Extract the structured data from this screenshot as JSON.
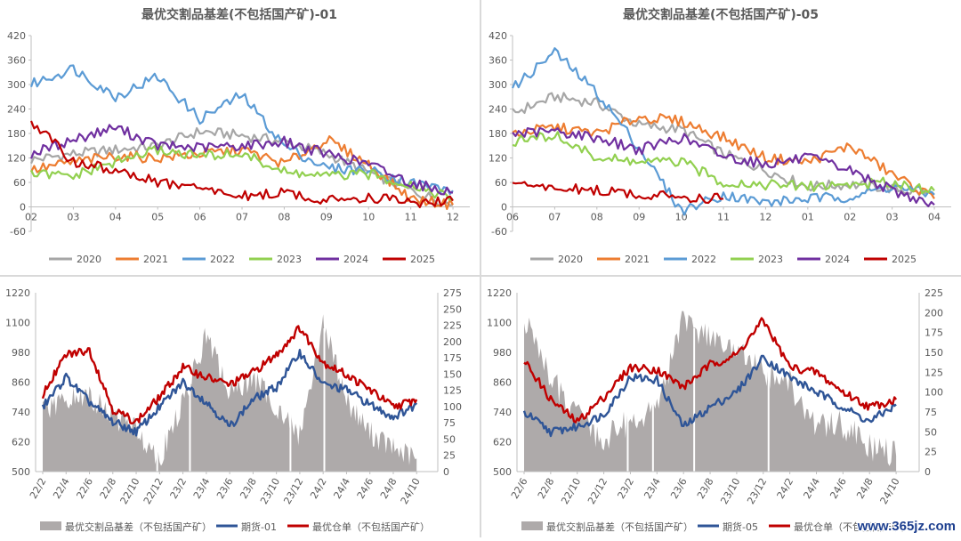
{
  "watermark": "www.365jz.com",
  "panels": [
    {
      "title": "最优交割品基差(不包括国产矿)-01",
      "legend": [
        "2020",
        "2021",
        "2022",
        "2023",
        "2024",
        "2025"
      ],
      "colors": [
        "#a6a6a6",
        "#ed7d31",
        "#5b9bd5",
        "#92d050",
        "#7030a0",
        "#c00000"
      ],
      "y_ticks": [
        "420",
        "360",
        "300",
        "240",
        "180",
        "120",
        "60",
        "0",
        "-60"
      ],
      "x_ticks": [
        "02",
        "03",
        "04",
        "05",
        "06",
        "07",
        "08",
        "09",
        "10",
        "11",
        "12"
      ]
    },
    {
      "title": "最优交割品基差(不包括国产矿)-05",
      "legend": [
        "2020",
        "2021",
        "2022",
        "2023",
        "2024",
        "2025"
      ],
      "colors": [
        "#a6a6a6",
        "#ed7d31",
        "#5b9bd5",
        "#92d050",
        "#7030a0",
        "#c00000"
      ],
      "y_ticks": [
        "420",
        "360",
        "300",
        "240",
        "180",
        "120",
        "60",
        "0",
        "-60"
      ],
      "x_ticks": [
        "06",
        "07",
        "08",
        "09",
        "10",
        "11",
        "12",
        "01",
        "02",
        "03",
        "04"
      ]
    },
    {
      "legend": [
        "最优交割品基差（不包括国产矿）",
        "期货-01",
        "最优仓单（不包括国产矿）"
      ],
      "colors": [
        "#aeaaaa",
        "#2f5597",
        "#c00000"
      ],
      "y_left_ticks": [
        "1220",
        "1100",
        "980",
        "860",
        "740",
        "620",
        "500"
      ],
      "y_right_ticks": [
        "275",
        "250",
        "225",
        "200",
        "175",
        "150",
        "125",
        "100",
        "75",
        "50",
        "25",
        "0"
      ],
      "x_ticks": [
        "22/2",
        "22/4",
        "22/6",
        "22/8",
        "22/10",
        "22/12",
        "23/2",
        "23/4",
        "23/6",
        "23/8",
        "23/10",
        "23/12",
        "24/2",
        "24/4",
        "24/6",
        "24/8",
        "24/10"
      ]
    },
    {
      "legend": [
        "最优交割品基差（不包括国产矿）",
        "期货-05",
        "最优仓单（不包括国产矿）"
      ],
      "colors": [
        "#aeaaaa",
        "#2f5597",
        "#c00000"
      ],
      "y_left_ticks": [
        "1220",
        "1100",
        "980",
        "860",
        "740",
        "620",
        "500"
      ],
      "y_right_ticks": [
        "225",
        "200",
        "175",
        "150",
        "125",
        "100",
        "75",
        "50",
        "25",
        "0"
      ],
      "x_ticks": [
        "22/6",
        "22/8",
        "22/10",
        "22/12",
        "23/2",
        "23/4",
        "23/6",
        "23/8",
        "23/10",
        "23/12",
        "24/2",
        "24/4",
        "24/6",
        "24/8",
        "24/10"
      ]
    }
  ],
  "chart_data": [
    {
      "type": "line",
      "title": "最优交割品基差(不包括国产矿)-01",
      "x": [
        "02",
        "03",
        "04",
        "05",
        "06",
        "07",
        "08",
        "09",
        "10",
        "11",
        "12"
      ],
      "ylim": [
        -60,
        420
      ],
      "grid": false,
      "legend_position": "bottom",
      "series": [
        {
          "name": "2020",
          "values": [
            115,
            130,
            140,
            150,
            185,
            175,
            160,
            130,
            85,
            40,
            5
          ]
        },
        {
          "name": "2021",
          "values": [
            90,
            110,
            125,
            120,
            130,
            140,
            105,
            165,
            105,
            20,
            5
          ]
        },
        {
          "name": "2022",
          "values": [
            300,
            340,
            270,
            320,
            215,
            275,
            150,
            95,
            90,
            60,
            40
          ]
        },
        {
          "name": "2023",
          "values": [
            80,
            75,
            110,
            140,
            125,
            130,
            85,
            75,
            80,
            55,
            20
          ]
        },
        {
          "name": "2024",
          "values": [
            130,
            165,
            195,
            150,
            145,
            150,
            160,
            130,
            105,
            60,
            35
          ]
        },
        {
          "name": "2025",
          "values": [
            210,
            110,
            90,
            60,
            45,
            25,
            35,
            15,
            25,
            10,
            15
          ]
        }
      ]
    },
    {
      "type": "line",
      "title": "最优交割品基差(不包括国产矿)-05",
      "x": [
        "06",
        "07",
        "08",
        "09",
        "10",
        "11",
        "12",
        "01",
        "02",
        "03",
        "04"
      ],
      "ylim": [
        -60,
        420
      ],
      "grid": false,
      "legend_position": "bottom",
      "series": [
        {
          "name": "2020",
          "values": [
            230,
            270,
            255,
            200,
            190,
            130,
            90,
            50,
            55,
            45,
            30
          ]
        },
        {
          "name": "2021",
          "values": [
            180,
            195,
            180,
            220,
            210,
            170,
            120,
            110,
            150,
            80,
            20
          ]
        },
        {
          "name": "2022",
          "values": [
            290,
            380,
            280,
            145,
            -10,
            30,
            10,
            20,
            25,
            50,
            30
          ]
        },
        {
          "name": "2023",
          "values": [
            160,
            175,
            120,
            110,
            110,
            60,
            55,
            50,
            55,
            60,
            40
          ]
        },
        {
          "name": "2024",
          "values": [
            180,
            185,
            170,
            140,
            170,
            125,
            105,
            120,
            90,
            40,
            5
          ]
        },
        {
          "name": "2025",
          "values": [
            55,
            45,
            40,
            30,
            25,
            20,
            null,
            null,
            null,
            null,
            null
          ]
        }
      ]
    },
    {
      "type": "line",
      "x": [
        "22/2",
        "22/4",
        "22/6",
        "22/8",
        "22/10",
        "22/12",
        "23/2",
        "23/4",
        "23/6",
        "23/8",
        "23/10",
        "23/12",
        "24/2",
        "24/4",
        "24/6",
        "24/8",
        "24/10"
      ],
      "legend_position": "bottom",
      "y_left_lim": [
        500,
        1220
      ],
      "y_right_lim": [
        0,
        275
      ],
      "series": [
        {
          "name": "最优交割品基差（不包括国产矿）",
          "axis": "right",
          "kind": "area",
          "values": [
            90,
            110,
            115,
            85,
            65,
            20,
            105,
            210,
            120,
            145,
            100,
            55,
            230,
            110,
            60,
            35,
            20
          ]
        },
        {
          "name": "期货-01",
          "axis": "left",
          "values": [
            760,
            880,
            780,
            700,
            660,
            760,
            860,
            780,
            680,
            790,
            840,
            980,
            850,
            830,
            770,
            720,
            770
          ]
        },
        {
          "name": "最优仓单（不包括国产矿）",
          "axis": "left",
          "values": [
            810,
            970,
            990,
            750,
            700,
            800,
            920,
            880,
            850,
            900,
            970,
            1080,
            940,
            890,
            830,
            760,
            790
          ]
        }
      ]
    },
    {
      "type": "line",
      "x": [
        "22/6",
        "22/8",
        "22/10",
        "22/12",
        "23/2",
        "23/4",
        "23/6",
        "23/8",
        "23/10",
        "23/12",
        "24/2",
        "24/4",
        "24/6",
        "24/8",
        "24/10"
      ],
      "legend_position": "bottom",
      "y_left_lim": [
        500,
        1220
      ],
      "y_right_lim": [
        0,
        225
      ],
      "series": [
        {
          "name": "最优交割品基差（不包括国产矿）",
          "axis": "right",
          "kind": "area",
          "values": [
            195,
            115,
            70,
            40,
            65,
            80,
            190,
            170,
            150,
            125,
            110,
            55,
            60,
            30,
            20
          ]
        },
        {
          "name": "期货-05",
          "axis": "left",
          "values": [
            740,
            660,
            680,
            730,
            880,
            870,
            680,
            760,
            820,
            960,
            880,
            820,
            760,
            700,
            770
          ]
        },
        {
          "name": "最优仓单（不包括国产矿）",
          "axis": "left",
          "values": [
            950,
            790,
            700,
            800,
            920,
            910,
            840,
            930,
            970,
            1110,
            920,
            900,
            820,
            760,
            790
          ]
        }
      ]
    }
  ]
}
